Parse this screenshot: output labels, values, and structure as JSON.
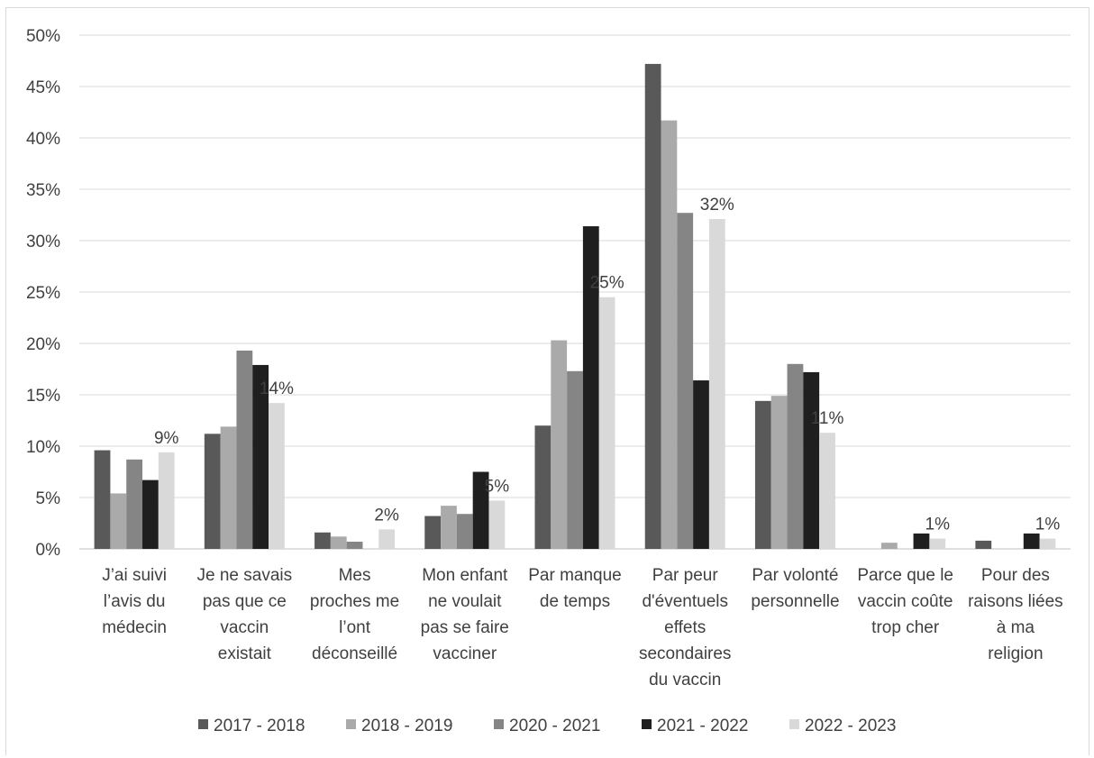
{
  "chart_data": {
    "type": "bar",
    "title": "",
    "xlabel": "",
    "ylabel": "",
    "ylim": [
      0,
      50
    ],
    "yticks": [
      "0%",
      "5%",
      "10%",
      "15%",
      "20%",
      "25%",
      "30%",
      "35%",
      "40%",
      "45%",
      "50%"
    ],
    "grid": true,
    "legend_position": "bottom",
    "categories": [
      [
        "J’ai suivi",
        "l’avis du",
        "médecin"
      ],
      [
        "Je ne savais",
        "pas que ce",
        "vaccin",
        "existait"
      ],
      [
        "Mes",
        "proches me",
        "l’ont",
        "déconseillé"
      ],
      [
        "Mon enfant",
        "ne voulait",
        "pas se faire",
        "vacciner"
      ],
      [
        "Par manque",
        "de temps"
      ],
      [
        "Par peur",
        "d'éventuels",
        "effets",
        "secondaires",
        "du vaccin"
      ],
      [
        "Par volonté",
        "personnelle"
      ],
      [
        "Parce que le",
        "vaccin coûte",
        "trop cher"
      ],
      [
        "Pour des",
        "raisons liées",
        "à ma",
        "religion"
      ]
    ],
    "series": [
      {
        "name": "2017 - 2018",
        "color": "#595959",
        "values": [
          9.6,
          11.2,
          1.6,
          3.2,
          12.0,
          47.2,
          14.4,
          0.0,
          0.8
        ]
      },
      {
        "name": "2018 - 2019",
        "color": "#aaaaaa",
        "values": [
          5.4,
          11.9,
          1.2,
          4.2,
          20.3,
          41.7,
          14.9,
          0.6,
          0.0
        ]
      },
      {
        "name": "2020 - 2021",
        "color": "#858585",
        "values": [
          8.7,
          19.3,
          0.7,
          3.4,
          17.3,
          32.7,
          18.0,
          0.0,
          0.0
        ]
      },
      {
        "name": "2021 - 2022",
        "color": "#1f1f1f",
        "values": [
          6.7,
          17.9,
          0.0,
          7.5,
          31.4,
          16.4,
          17.2,
          1.5,
          1.5
        ]
      },
      {
        "name": "2022 - 2023",
        "color": "#d9d9d9",
        "values": [
          9.4,
          14.2,
          1.9,
          4.7,
          24.5,
          32.1,
          11.3,
          1.0,
          1.0
        ]
      }
    ],
    "data_labels": {
      "series": "2022 - 2023",
      "labels": [
        "9%",
        "14%",
        "2%",
        "5%",
        "25%",
        "32%",
        "11%",
        "1%",
        "1%"
      ]
    }
  }
}
